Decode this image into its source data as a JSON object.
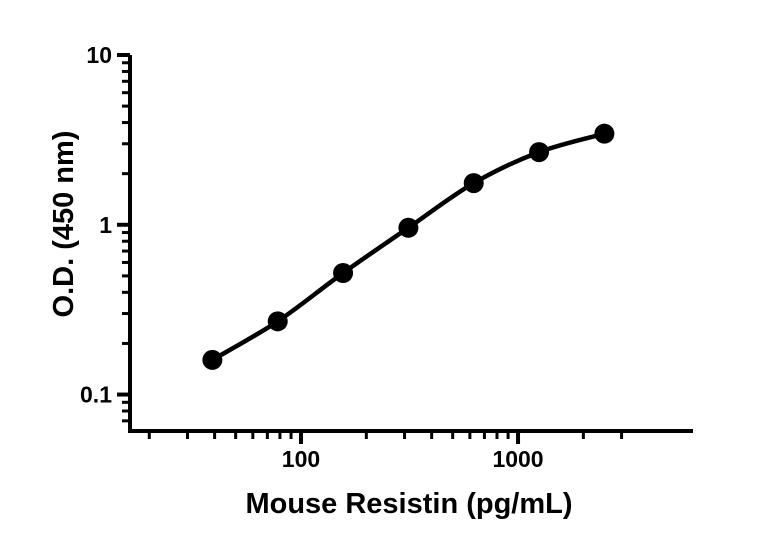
{
  "figure": {
    "background_color": "#ffffff",
    "ink_color": "#000000"
  },
  "chart_data": {
    "type": "line",
    "title": "",
    "xlabel": "Mouse Resistin (pg/mL)",
    "ylabel": "O.D. (450 nm)",
    "x_scale": "log10",
    "y_scale": "log10",
    "xlim": [
      16.3,
      6400
    ],
    "ylim": [
      0.061,
      10
    ],
    "grid": false,
    "legend": null,
    "series": [
      {
        "name": "standard-curve",
        "marker": "filled-circle",
        "color": "#000000",
        "x": [
          39.06,
          78.13,
          156.25,
          312.5,
          625,
          1250,
          2500
        ],
        "y": [
          0.16,
          0.27,
          0.52,
          0.96,
          1.76,
          2.68,
          3.44
        ]
      }
    ],
    "x_major_ticks": [
      {
        "value": 100,
        "label": "100"
      },
      {
        "value": 1000,
        "label": "1000"
      }
    ],
    "x_minor_ticks": [
      20,
      30,
      40,
      50,
      60,
      70,
      80,
      90,
      200,
      300,
      400,
      500,
      600,
      700,
      800,
      900,
      2000,
      3000
    ],
    "y_major_ticks": [
      {
        "value": 10,
        "label": "10"
      },
      {
        "value": 1,
        "label": "1"
      },
      {
        "value": 0.1,
        "label": "0.1"
      }
    ],
    "y_minor_ticks": [
      9,
      8,
      7,
      6,
      5,
      4,
      3,
      2,
      0.9,
      0.8,
      0.7,
      0.6,
      0.5,
      0.4,
      0.3,
      0.2,
      0.09,
      0.08,
      0.07
    ]
  }
}
